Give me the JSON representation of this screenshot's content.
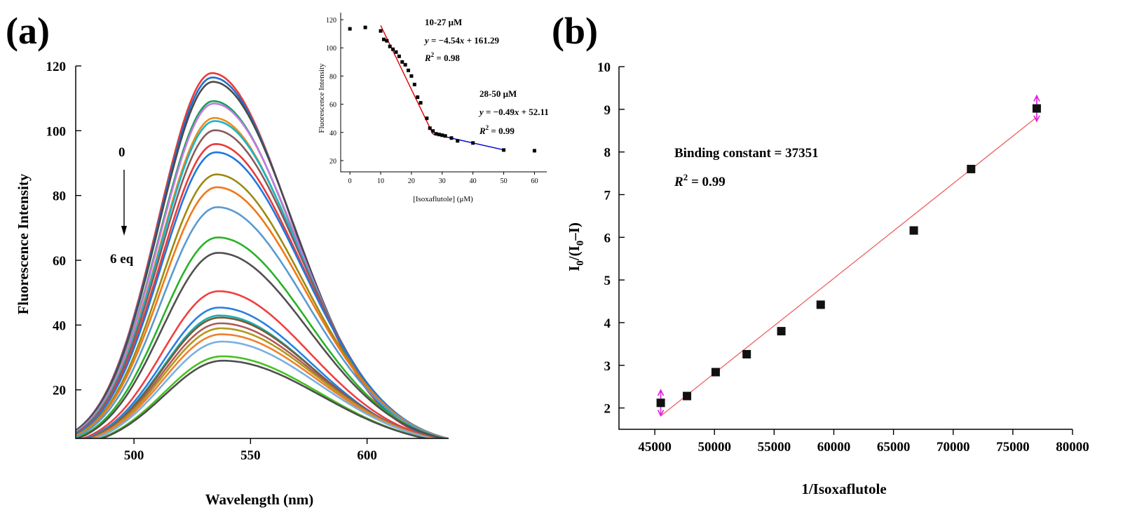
{
  "chart_data": [
    {
      "panel": "(a)",
      "type": "line",
      "title": "",
      "xlabel": "Wavelength (nm)",
      "ylabel": "Fluorescence Intensity",
      "xlim": [
        475,
        635
      ],
      "ylim": [
        5,
        120
      ],
      "xticks": [
        500,
        550,
        600
      ],
      "yticks": [
        20,
        40,
        60,
        80,
        100,
        120
      ],
      "annotation": {
        "start": "0",
        "end": "6 eq"
      },
      "peaks": [
        114.8,
        113.5,
        112.2,
        106.3,
        105.6,
        101.2,
        100.3,
        97.5,
        93.3,
        90.8,
        84.0,
        80.1,
        74.0,
        64.7,
        60.0,
        48.2,
        43.2,
        40.8,
        40.2,
        38.5,
        37.0,
        35.2,
        33.0,
        28.5,
        27.2
      ],
      "colors": [
        "#ee3b30",
        "#1f6fd6",
        "#4a4a4a",
        "#16a05a",
        "#c57ae0",
        "#f08a1c",
        "#17b7c7",
        "#8a5a5a",
        "#e83a3a",
        "#1e78e0",
        "#9c8a10",
        "#f07818",
        "#5a9ad0",
        "#28b228",
        "#505050",
        "#f04040",
        "#2a7fe0",
        "#17b0b0",
        "#7a5a3a",
        "#b05a5a",
        "#b09a18",
        "#f08030",
        "#7ab0e0",
        "#48c020",
        "#4e4e4e"
      ],
      "inset": {
        "xlabel": "[Isoxaflutole] (μM)",
        "ylabel": "Fluorescence Intensity",
        "xlim": [
          -3,
          64
        ],
        "ylim": [
          12,
          125
        ],
        "xticks": [
          0,
          10,
          20,
          30,
          40,
          50,
          60
        ],
        "yticks": [
          20,
          40,
          60,
          80,
          100,
          120
        ],
        "points": [
          [
            0,
            113.5
          ],
          [
            5,
            114.5
          ],
          [
            10,
            112
          ],
          [
            11,
            106
          ],
          [
            12,
            105
          ],
          [
            13,
            101
          ],
          [
            14,
            99
          ],
          [
            15,
            97
          ],
          [
            16,
            94
          ],
          [
            17,
            90
          ],
          [
            18,
            88
          ],
          [
            19,
            84
          ],
          [
            20,
            80
          ],
          [
            21,
            74
          ],
          [
            22,
            65
          ],
          [
            23,
            61
          ],
          [
            25,
            50
          ],
          [
            26,
            43
          ],
          [
            27,
            41
          ],
          [
            28,
            39
          ],
          [
            29,
            38.5
          ],
          [
            30,
            38
          ],
          [
            31,
            37.5
          ],
          [
            33,
            36
          ],
          [
            35,
            34
          ],
          [
            40,
            32.5
          ],
          [
            50,
            27.5
          ],
          [
            60,
            27
          ]
        ],
        "fits": [
          {
            "range": "10-27 μM",
            "equation": "y = −4.54x + 161.29",
            "r2": "R² = 0.98",
            "slope": -4.54,
            "intercept": 161.29,
            "from": 10,
            "to": 27,
            "color": "#e00000"
          },
          {
            "range": "28-50 μM",
            "equation": "y = −0.49x + 52.11",
            "r2": "R² = 0.99",
            "slope": -0.49,
            "intercept": 52.11,
            "from": 27,
            "to": 50,
            "color": "#0000d0"
          }
        ]
      }
    },
    {
      "panel": "(b)",
      "type": "scatter",
      "title": "",
      "xlabel": "1/Isoxaflutole",
      "ylabel": "I0/(I0−I)",
      "xlim": [
        42000,
        80000
      ],
      "ylim": [
        1.5,
        10
      ],
      "xticks": [
        45000,
        50000,
        55000,
        60000,
        65000,
        70000,
        75000,
        80000
      ],
      "yticks": [
        2,
        3,
        4,
        5,
        6,
        7,
        8,
        9,
        10
      ],
      "points": [
        [
          45500,
          2.12
        ],
        [
          47700,
          2.28
        ],
        [
          50100,
          2.84
        ],
        [
          52700,
          3.26
        ],
        [
          55600,
          3.8
        ],
        [
          58900,
          4.42
        ],
        [
          66700,
          6.16
        ],
        [
          71500,
          7.6
        ],
        [
          77000,
          9.02
        ]
      ],
      "fit": {
        "slope": 0.0002223,
        "intercept": -8.3,
        "from": 45500,
        "to": 77000,
        "color": "#f06060"
      },
      "error_bars": [
        [
          45500,
          1.82,
          2.42
        ],
        [
          77000,
          8.72,
          9.32
        ]
      ],
      "notes": {
        "binding": "Binding constant = 37351",
        "r2": "R² = 0.99"
      }
    }
  ]
}
